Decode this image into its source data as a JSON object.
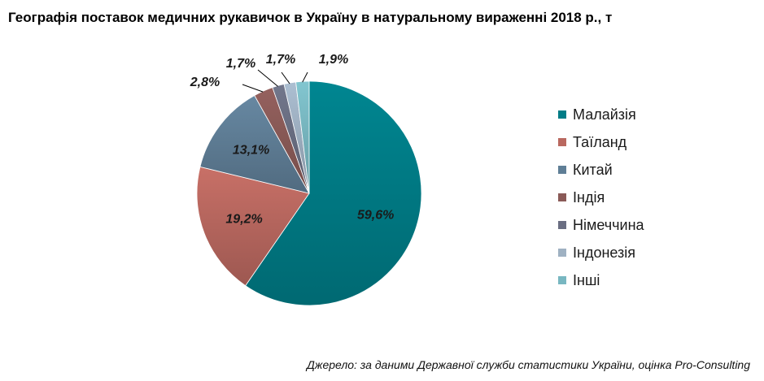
{
  "title": "Географія поставок медичних рукавичок в Україну в натуральному вираженні 2018 р., т",
  "source": "Джерело: за даними Державної служби статистики України, оцінка Pro-Consulting",
  "chart_data": {
    "type": "pie",
    "title": "Географія поставок медичних рукавичок в Україну в натуральному вираженні 2018 р., т",
    "legend_position": "right",
    "categories": [
      "Малайзія",
      "Таїланд",
      "Китай",
      "Індія",
      "Німеччина",
      "Індонезія",
      "Інші"
    ],
    "values": [
      59.6,
      19.2,
      13.1,
      2.8,
      1.7,
      1.7,
      1.9
    ],
    "labels": [
      "59,6%",
      "19,2%",
      "13,1%",
      "2,8%",
      "1,7%",
      "1,7%",
      "1,9%"
    ],
    "colors": [
      "#007c86",
      "#b9685f",
      "#5f7e96",
      "#8a5a57",
      "#6a6e82",
      "#9fb1c2",
      "#78b7c1"
    ]
  }
}
